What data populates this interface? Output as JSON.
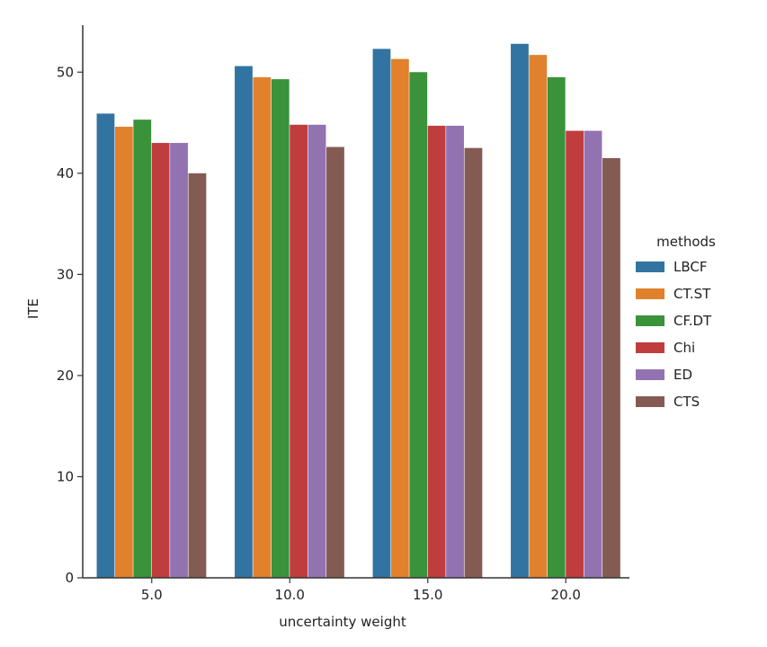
{
  "chart_data": {
    "type": "bar",
    "title": "",
    "xlabel": "uncertainty weight",
    "ylabel": "ITE",
    "ylim": [
      0,
      55
    ],
    "yticks": [
      0,
      10,
      20,
      30,
      40,
      50
    ],
    "categories": [
      "5.0",
      "10.0",
      "15.0",
      "20.0"
    ],
    "legend": {
      "title": "methods",
      "placement": "right"
    },
    "grid": false,
    "series": [
      {
        "name": "LBCF",
        "color": "#3274a1",
        "values": [
          45.9,
          50.6,
          52.3,
          52.8
        ]
      },
      {
        "name": "CT.ST",
        "color": "#e1812c",
        "values": [
          44.6,
          49.5,
          51.3,
          51.7
        ]
      },
      {
        "name": "CF.DT",
        "color": "#3a923a",
        "values": [
          45.3,
          49.3,
          50.0,
          49.5
        ]
      },
      {
        "name": "Chi",
        "color": "#c03d3e",
        "values": [
          43.0,
          44.8,
          44.7,
          44.2
        ]
      },
      {
        "name": "ED",
        "color": "#9372b2",
        "values": [
          43.0,
          44.8,
          44.7,
          44.2
        ]
      },
      {
        "name": "CTS",
        "color": "#845b53",
        "values": [
          40.0,
          42.6,
          42.5,
          41.5
        ]
      }
    ]
  }
}
